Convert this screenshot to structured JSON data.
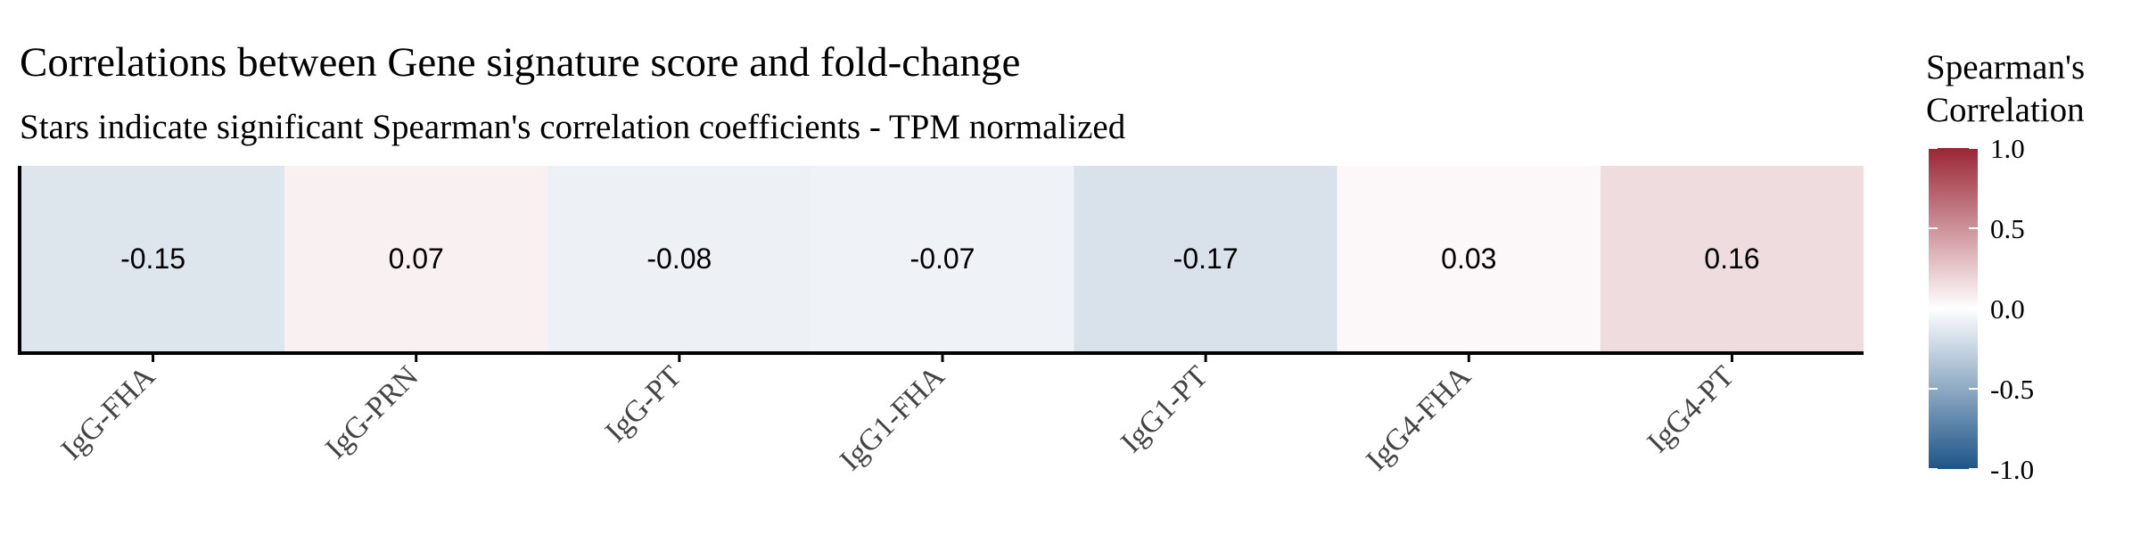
{
  "chart_data": {
    "type": "heatmap",
    "title": "Correlations between Gene signature score and fold-change",
    "subtitle": "Stars indicate significant Spearman's correlation coefficients - TPM normalized",
    "categories": [
      "IgG-FHA",
      "IgG-PRN",
      "IgG-PT",
      "IgG1-FHA",
      "IgG1-PT",
      "IgG4-FHA",
      "IgG4-PT"
    ],
    "values": [
      -0.15,
      0.07,
      -0.08,
      -0.07,
      -0.17,
      0.03,
      0.16
    ],
    "value_labels": [
      "-0.15",
      "0.07",
      "-0.08",
      "-0.07",
      "-0.17",
      "0.03",
      "0.16"
    ],
    "legend": {
      "title_lines": [
        "Spearman's",
        "Correlation"
      ],
      "placement": "right",
      "range": [
        -1.0,
        1.0
      ],
      "ticks": [
        1.0,
        0.5,
        0.0,
        -0.5,
        -1.0
      ],
      "tick_labels": [
        "1.0",
        "0.5",
        "0.0",
        "-0.5",
        "-1.0"
      ]
    },
    "colorscale": {
      "low": "#1d5488",
      "mid": "#ffffff",
      "high": "#9b2535"
    },
    "grid": false
  }
}
